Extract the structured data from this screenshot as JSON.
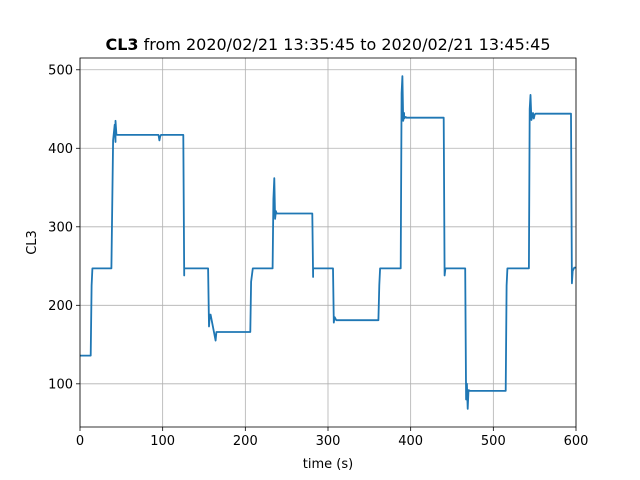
{
  "chart_data": {
    "type": "line",
    "title_bold": "CL3",
    "title_rest": " from 2020/02/21 13:35:45 to 2020/02/21 13:45:45",
    "xlabel": "time (s)",
    "ylabel": "CL3",
    "xlim": [
      0,
      600
    ],
    "ylim": [
      45,
      515
    ],
    "xticks": [
      0,
      100,
      200,
      300,
      400,
      500,
      600
    ],
    "yticks": [
      100,
      200,
      300,
      400,
      500
    ],
    "grid": true,
    "colors": {
      "line": "#1f77b4",
      "grid": "#b0b0b0"
    },
    "series": [
      {
        "x": [
          0,
          13,
          14,
          15,
          38,
          40,
          42,
          43,
          43,
          44,
          45,
          95,
          96,
          97,
          98,
          100,
          125,
          126,
          126,
          128,
          155,
          156,
          157,
          158,
          164,
          165,
          206,
          207,
          209,
          233,
          234,
          235,
          236,
          237,
          238,
          281,
          282,
          282,
          284,
          306,
          307,
          308,
          310,
          361,
          362,
          363,
          365,
          388,
          389,
          390,
          391,
          392,
          392,
          394,
          395,
          440,
          441,
          442,
          444,
          466,
          467,
          468,
          469,
          470,
          472,
          515,
          516,
          517,
          519,
          543,
          544,
          545,
          546,
          548,
          549,
          550,
          551,
          594,
          595,
          596,
          598,
          600
        ],
        "y": [
          136,
          136,
          225,
          247,
          247,
          410,
          430,
          408,
          435,
          418,
          417,
          417,
          410,
          415,
          417,
          417,
          417,
          238,
          247,
          247,
          247,
          173,
          188,
          188,
          155,
          166,
          166,
          230,
          247,
          247,
          335,
          362,
          310,
          320,
          317,
          317,
          236,
          247,
          247,
          247,
          178,
          185,
          181,
          181,
          226,
          247,
          247,
          247,
          470,
          492,
          435,
          445,
          438,
          440,
          439,
          439,
          238,
          247,
          247,
          247,
          80,
          100,
          68,
          92,
          91,
          91,
          225,
          247,
          247,
          247,
          450,
          468,
          436,
          445,
          438,
          443,
          444,
          444,
          228,
          244,
          248,
          248
        ]
      }
    ]
  }
}
